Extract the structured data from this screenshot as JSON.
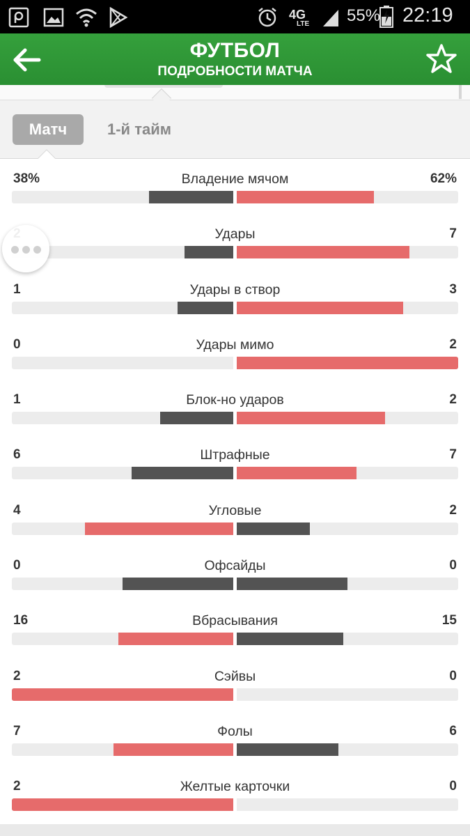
{
  "status_bar": {
    "battery": "55%",
    "time": "22:19",
    "network": "4G",
    "network_sub": "LTE",
    "icons": [
      "p-app-icon",
      "gallery-icon",
      "wifi-icon",
      "play-store-icon",
      "alarm-icon",
      "signal-icon",
      "battery-icon"
    ]
  },
  "header": {
    "title": "ФУТБОЛ",
    "subtitle": "ПОДРОБНОСТИ МАТЧА",
    "back_icon": "arrow-left-icon",
    "favorite_icon": "star-outline-icon",
    "color": "#2f9a37"
  },
  "tabs": [
    {
      "label": "Матч",
      "active": true
    },
    {
      "label": "1-й тайм",
      "active": false
    }
  ],
  "colors": {
    "leader": "#e66b6b",
    "other": "#535353",
    "track": "#ececec"
  },
  "stats": [
    {
      "label": "Владение мячом",
      "home": "38%",
      "away": "62%",
      "home_fill": 0.38,
      "away_fill": 0.62,
      "home_color": "dark",
      "away_color": "red"
    },
    {
      "label": "Удары",
      "home": "2",
      "away": "7",
      "home_fill": 0.22,
      "away_fill": 0.78,
      "home_color": "dark",
      "away_color": "red"
    },
    {
      "label": "Удары в створ",
      "home": "1",
      "away": "3",
      "home_fill": 0.25,
      "away_fill": 0.75,
      "home_color": "dark",
      "away_color": "red"
    },
    {
      "label": "Удары мимо",
      "home": "0",
      "away": "2",
      "home_fill": 0.0,
      "away_fill": 1.0,
      "home_color": "dark",
      "away_color": "red"
    },
    {
      "label": "Блок-но ударов",
      "home": "1",
      "away": "2",
      "home_fill": 0.33,
      "away_fill": 0.67,
      "home_color": "dark",
      "away_color": "red"
    },
    {
      "label": "Штрафные",
      "home": "6",
      "away": "7",
      "home_fill": 0.46,
      "away_fill": 0.54,
      "home_color": "dark",
      "away_color": "red"
    },
    {
      "label": "Угловые",
      "home": "4",
      "away": "2",
      "home_fill": 0.67,
      "away_fill": 0.33,
      "home_color": "red",
      "away_color": "dark"
    },
    {
      "label": "Офсайды",
      "home": "0",
      "away": "0",
      "home_fill": 0.5,
      "away_fill": 0.5,
      "home_color": "dark",
      "away_color": "dark"
    },
    {
      "label": "Вбрасывания",
      "home": "16",
      "away": "15",
      "home_fill": 0.52,
      "away_fill": 0.48,
      "home_color": "red",
      "away_color": "dark"
    },
    {
      "label": "Сэйвы",
      "home": "2",
      "away": "0",
      "home_fill": 1.0,
      "away_fill": 0.0,
      "home_color": "red",
      "away_color": "dark"
    },
    {
      "label": "Фолы",
      "home": "7",
      "away": "6",
      "home_fill": 0.54,
      "away_fill": 0.46,
      "home_color": "red",
      "away_color": "dark"
    },
    {
      "label": "Желтые карточки",
      "home": "2",
      "away": "0",
      "home_fill": 1.0,
      "away_fill": 0.0,
      "home_color": "red",
      "away_color": "dark"
    }
  ],
  "fab": {
    "icon": "more-dots-icon"
  }
}
